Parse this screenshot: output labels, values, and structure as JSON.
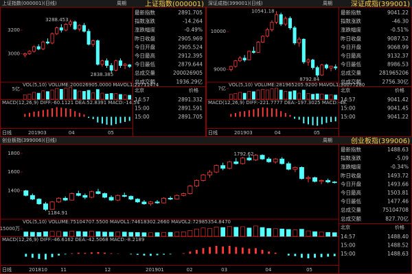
{
  "chart_data": [
    {
      "type": "candlestick",
      "tab": "上证指数(000001)(日线)",
      "period": "周期",
      "name": "上证指数(000001)",
      "ylim": [
        2770,
        3380
      ],
      "yticks": [
        3000,
        3200
      ],
      "high_label": "3288.453",
      "low_label": "2838.385",
      "ohlc": [
        [
          2990,
          3010,
          2970,
          3000
        ],
        [
          3000,
          3030,
          2990,
          3020
        ],
        [
          3020,
          3070,
          3010,
          3060
        ],
        [
          3060,
          3080,
          3030,
          3040
        ],
        [
          3040,
          3110,
          3030,
          3100
        ],
        [
          3100,
          3130,
          3080,
          3090
        ],
        [
          3090,
          3180,
          3080,
          3170
        ],
        [
          3170,
          3230,
          3160,
          3220
        ],
        [
          3220,
          3250,
          3180,
          3200
        ],
        [
          3200,
          3260,
          3190,
          3250
        ],
        [
          3250,
          3288.453,
          3230,
          3270
        ],
        [
          3270,
          3280,
          3200,
          3210
        ],
        [
          3210,
          3250,
          3190,
          3240
        ],
        [
          3240,
          3260,
          3180,
          3190
        ],
        [
          3190,
          3210,
          3070,
          3080
        ],
        [
          3080,
          3120,
          3060,
          3110
        ],
        [
          3110,
          3120,
          2900,
          2910
        ],
        [
          2910,
          2950,
          2890,
          2940
        ],
        [
          2940,
          2960,
          2880,
          2900
        ],
        [
          2900,
          2920,
          2838.385,
          2860
        ],
        [
          2860,
          2950,
          2850,
          2940
        ],
        [
          2940,
          2960,
          2880,
          2900
        ],
        [
          2900,
          2920,
          2870,
          2910
        ],
        [
          2905.524,
          2912.395,
          2879.644,
          2891.705
        ]
      ],
      "vol_label": "VOL(5,10) VOLUME:200026905.0000 MAVOL1:22711474",
      "vol_ylim": [
        0,
        6
      ],
      "vol_yticks": [
        {
          "value": 5,
          "label": "5亿"
        }
      ],
      "volume": [
        2.2,
        2.5,
        3.4,
        3.0,
        4.1,
        3.8,
        4.6,
        5.3,
        4.9,
        5.5,
        5.8,
        4.7,
        4.0,
        3.9,
        4.4,
        3.2,
        4.8,
        3.0,
        2.6,
        2.9,
        2.8,
        2.4,
        2.1,
        2.0
      ],
      "macd_label": "MACD(12,26,9) DIFF:-60.1121 DEA:52.8391 MACD:-14.54",
      "macd_ylim": [
        -40,
        40
      ],
      "macd": [
        10,
        14,
        18,
        20,
        24,
        26,
        30,
        34,
        32,
        30,
        28,
        20,
        14,
        8,
        -4,
        -8,
        -20,
        -24,
        -28,
        -30,
        -26,
        -22,
        -18,
        -14.54
      ],
      "x_labels": [
        "日线",
        "201903",
        "04",
        "05"
      ],
      "quote": [
        [
          "最新指数",
          "2891.705"
        ],
        [
          "指数涨跌",
          "-14.264"
        ],
        [
          "涨跌幅度",
          "-0.49%"
        ],
        [
          "昨日收盘",
          "2905.969"
        ],
        [
          "今日开盘",
          "2905.524"
        ],
        [
          "今日最高",
          "2912.395"
        ],
        [
          "今日最低",
          "2879.644"
        ],
        [
          "总成交量",
          "200026905"
        ],
        [
          "总成交额",
          "1936.29亿"
        ]
      ],
      "ticks_header": [
        "北京",
        "价格"
      ],
      "ticks": [
        [
          "14:57",
          "2891.332"
        ],
        [
          "15:00",
          "2891.591"
        ],
        [
          "15:00",
          "2891.705"
        ]
      ]
    },
    {
      "type": "candlestick",
      "tab": "深证成指(399001)(日线)",
      "period": "周期",
      "name": "深证成指(399001)",
      "ylim": [
        8700,
        10600
      ],
      "yticks": [
        9000,
        10000
      ],
      "high_label": "10541.18",
      "low_label": "8792.84",
      "ohlc": [
        [
          9000,
          9100,
          8950,
          9080
        ],
        [
          9080,
          9250,
          9050,
          9230
        ],
        [
          9230,
          9350,
          9200,
          9300
        ],
        [
          9300,
          9380,
          9200,
          9250
        ],
        [
          9250,
          9500,
          9240,
          9480
        ],
        [
          9480,
          9600,
          9420,
          9450
        ],
        [
          9450,
          9750,
          9440,
          9720
        ],
        [
          9720,
          9900,
          9700,
          9880
        ],
        [
          9880,
          10100,
          9850,
          10050
        ],
        [
          10050,
          10300,
          10000,
          10250
        ],
        [
          10250,
          10541.18,
          10200,
          10450
        ],
        [
          10450,
          10500,
          10150,
          10200
        ],
        [
          10200,
          10400,
          10150,
          10350
        ],
        [
          10350,
          10400,
          10050,
          10100
        ],
        [
          10100,
          10150,
          9650,
          9700
        ],
        [
          9700,
          9850,
          9600,
          9800
        ],
        [
          9800,
          9820,
          9150,
          9200
        ],
        [
          9200,
          9300,
          9100,
          9250
        ],
        [
          9250,
          9280,
          9000,
          9050
        ],
        [
          9050,
          9100,
          8792.84,
          8850
        ],
        [
          8850,
          9150,
          8830,
          9120
        ],
        [
          9120,
          9150,
          9000,
          9040
        ],
        [
          9040,
          9100,
          8950,
          9090
        ],
        [
          9068.99,
          9132.37,
          8986.53,
          9041.22
        ]
      ],
      "vol_label": "VOL(5,10) VOLUME:281965205.9200 MAVOL1:30077280",
      "vol_ylim": [
        0,
        8
      ],
      "vol_yticks": [
        {
          "value": 7,
          "label": "7亿"
        }
      ],
      "volume": [
        3.2,
        3.8,
        4.5,
        4.0,
        5.2,
        5.0,
        5.9,
        6.5,
        6.2,
        6.8,
        7.2,
        6.0,
        5.1,
        5.0,
        5.6,
        4.0,
        6.0,
        3.8,
        3.3,
        3.6,
        3.5,
        3.0,
        2.9,
        2.8
      ],
      "macd_label": "MACD(12,26,9) DIFF:-221.7777 DEA:-197.3025 MACD:-48.",
      "macd_ylim": [
        -120,
        120
      ],
      "macd": [
        30,
        40,
        55,
        60,
        70,
        80,
        90,
        100,
        95,
        90,
        85,
        60,
        40,
        20,
        -20,
        -30,
        -70,
        -80,
        -90,
        -95,
        -80,
        -65,
        -55,
        -48
      ],
      "x_labels": [
        "日线",
        "201903",
        "04",
        "05"
      ],
      "quote": [
        [
          "最新指数",
          "9041.22"
        ],
        [
          "指数涨跌",
          "-46.30"
        ],
        [
          "涨跌幅度",
          "-0.51%"
        ],
        [
          "昨日收盘",
          "9087.52"
        ],
        [
          "今日开盘",
          "9068.99"
        ],
        [
          "今日最高",
          "9132.37"
        ],
        [
          "今日最低",
          "8986.53"
        ],
        [
          "总成交量",
          "281965206"
        ],
        [
          "总成交额",
          "2756.30亿"
        ]
      ],
      "ticks_header": [
        "北京",
        "价格"
      ],
      "ticks": [
        [
          "14:57",
          "9041.42"
        ],
        [
          "15:00",
          "9041.45"
        ],
        [
          "15:00",
          "9041.22"
        ]
      ]
    },
    {
      "type": "candlestick",
      "tab": "创业板指(399006)(日线)",
      "period": "周期",
      "name": "创业板指(399006)",
      "ylim": [
        1110,
        1880
      ],
      "yticks": [
        1400,
        1600,
        1800
      ],
      "high_label": "1792.62",
      "low_label": "1184.91",
      "ohlc": [
        [
          1400,
          1410,
          1340,
          1350
        ],
        [
          1350,
          1370,
          1300,
          1310
        ],
        [
          1310,
          1320,
          1250,
          1260
        ],
        [
          1260,
          1280,
          1184.91,
          1200
        ],
        [
          1200,
          1290,
          1195,
          1280
        ],
        [
          1280,
          1330,
          1270,
          1320
        ],
        [
          1320,
          1340,
          1290,
          1300
        ],
        [
          1300,
          1380,
          1295,
          1370
        ],
        [
          1370,
          1400,
          1340,
          1350
        ],
        [
          1350,
          1370,
          1310,
          1330
        ],
        [
          1330,
          1400,
          1320,
          1390
        ],
        [
          1390,
          1420,
          1360,
          1370
        ],
        [
          1370,
          1380,
          1320,
          1330
        ],
        [
          1330,
          1350,
          1290,
          1300
        ],
        [
          1300,
          1360,
          1290,
          1350
        ],
        [
          1350,
          1380,
          1330,
          1340
        ],
        [
          1340,
          1350,
          1300,
          1310
        ],
        [
          1310,
          1320,
          1270,
          1280
        ],
        [
          1280,
          1300,
          1250,
          1260
        ],
        [
          1260,
          1290,
          1240,
          1280
        ],
        [
          1280,
          1300,
          1260,
          1270
        ],
        [
          1270,
          1330,
          1265,
          1320
        ],
        [
          1320,
          1340,
          1300,
          1310
        ],
        [
          1310,
          1360,
          1305,
          1350
        ],
        [
          1350,
          1380,
          1340,
          1370
        ],
        [
          1370,
          1460,
          1360,
          1450
        ],
        [
          1450,
          1520,
          1440,
          1510
        ],
        [
          1510,
          1580,
          1500,
          1570
        ],
        [
          1570,
          1620,
          1540,
          1600
        ],
        [
          1600,
          1680,
          1590,
          1670
        ],
        [
          1670,
          1700,
          1620,
          1640
        ],
        [
          1640,
          1720,
          1630,
          1710
        ],
        [
          1710,
          1750,
          1680,
          1690
        ],
        [
          1690,
          1760,
          1680,
          1750
        ],
        [
          1750,
          1780,
          1720,
          1730
        ],
        [
          1730,
          1792.62,
          1720,
          1780
        ],
        [
          1780,
          1790,
          1730,
          1740
        ],
        [
          1740,
          1760,
          1700,
          1710
        ],
        [
          1710,
          1750,
          1690,
          1740
        ],
        [
          1740,
          1760,
          1680,
          1690
        ],
        [
          1690,
          1710,
          1620,
          1630
        ],
        [
          1630,
          1660,
          1600,
          1650
        ],
        [
          1650,
          1660,
          1520,
          1530
        ],
        [
          1530,
          1560,
          1490,
          1540
        ],
        [
          1540,
          1550,
          1490,
          1500
        ],
        [
          1500,
          1520,
          1470,
          1510
        ],
        [
          1510,
          1530,
          1480,
          1493.72
        ],
        [
          1493.66,
          1503.81,
          1477.46,
          1488.63
        ]
      ],
      "vol_label": "VOL(5,10) VOLUME:75104707.5500 MAVOL1:74618302.2660 MAVOL2:72985354.8470",
      "vol_ylim": [
        0,
        25000
      ],
      "vol_yticks": [
        {
          "value": 15000,
          "label": "15000万"
        }
      ],
      "volume": [
        9000,
        8500,
        8000,
        9500,
        10000,
        9800,
        9000,
        10500,
        9800,
        9200,
        10200,
        9600,
        8800,
        8500,
        9000,
        8800,
        8200,
        7800,
        7500,
        7200,
        7600,
        8000,
        8200,
        8600,
        9000,
        12000,
        15000,
        17000,
        16000,
        19000,
        18000,
        20000,
        18500,
        19500,
        17000,
        21000,
        18000,
        16000,
        15500,
        15000,
        14000,
        13000,
        14500,
        11000,
        9500,
        8500,
        8000,
        7500
      ],
      "macd_label": "MACD(12,26,9) DIFF:-46.6162 DEA:-42.5068 MACD:-8.2189",
      "macd_ylim": [
        -40,
        40
      ],
      "macd": [
        -10,
        -14,
        -18,
        -20,
        -12,
        -6,
        -2,
        2,
        4,
        3,
        5,
        6,
        4,
        2,
        1,
        0,
        -2,
        -4,
        -6,
        -7,
        -5,
        -3,
        -2,
        0,
        2,
        8,
        14,
        20,
        24,
        28,
        26,
        28,
        24,
        22,
        18,
        20,
        14,
        8,
        4,
        0,
        -6,
        -8,
        -14,
        -16,
        -14,
        -12,
        -10,
        -8.2189
      ],
      "x_labels": [
        "日线",
        "201810",
        "11",
        "12",
        "201901",
        "02",
        "03",
        "04",
        "05"
      ],
      "quote": [
        [
          "最新指数",
          "1488.63"
        ],
        [
          "指数涨跌",
          "-5.09"
        ],
        [
          "涨跌幅度",
          "-0.34%"
        ],
        [
          "昨日收盘",
          "1493.72"
        ],
        [
          "今日开盘",
          "1493.66"
        ],
        [
          "今日最高",
          "1503.81"
        ],
        [
          "今日最低",
          "1477.46"
        ],
        [
          "总成交量",
          "75104708"
        ],
        [
          "总成交额",
          "827.70亿"
        ]
      ],
      "ticks_header": [
        "北京",
        "价格"
      ],
      "ticks": [
        [
          "14:57",
          "1488.40"
        ],
        [
          "15:00",
          "1488.52"
        ],
        [
          "15:00",
          "1488.63"
        ]
      ]
    }
  ]
}
